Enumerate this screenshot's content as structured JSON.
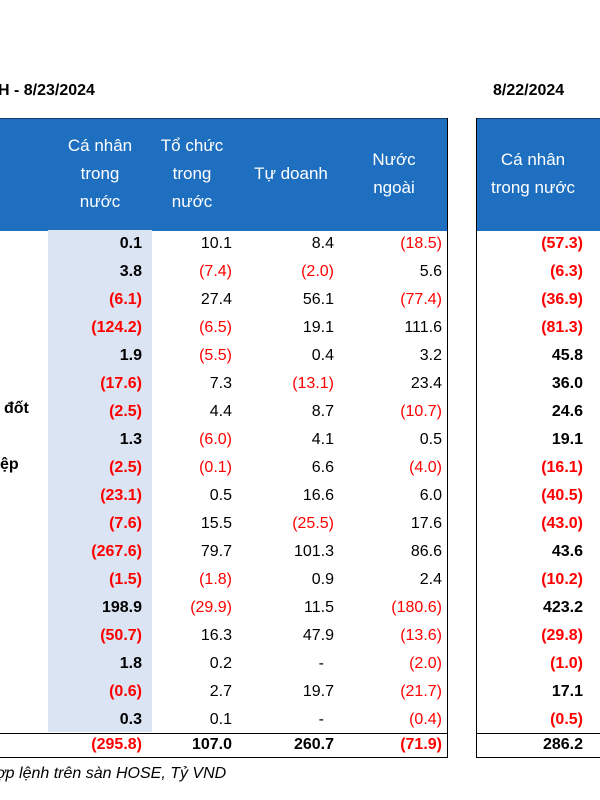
{
  "titles": {
    "left": "H - 8/23/2024",
    "right": "8/22/2024"
  },
  "headers": {
    "col1": [
      "Cá nhân",
      "trong",
      "nước"
    ],
    "col2": [
      "Tổ chức",
      "trong",
      "nước"
    ],
    "col3": [
      "Tự doanh"
    ],
    "col4": [
      "Nước",
      "ngoài"
    ],
    "col5": [
      "Cá nhân",
      "trong nước"
    ]
  },
  "row_labels": {
    "row7": "đốt",
    "row9": "ệp"
  },
  "rows": [
    [
      "0.1",
      "10.1",
      "8.4",
      "(18.5)",
      "(57.3)"
    ],
    [
      "3.8",
      "(7.4)",
      "(2.0)",
      "5.6",
      "(6.3)"
    ],
    [
      "(6.1)",
      "27.4",
      "56.1",
      "(77.4)",
      "(36.9)"
    ],
    [
      "(124.2)",
      "(6.5)",
      "19.1",
      "111.6",
      "(81.3)"
    ],
    [
      "1.9",
      "(5.5)",
      "0.4",
      "3.2",
      "45.8"
    ],
    [
      "(17.6)",
      "7.3",
      "(13.1)",
      "23.4",
      "36.0"
    ],
    [
      "(2.5)",
      "4.4",
      "8.7",
      "(10.7)",
      "24.6"
    ],
    [
      "1.3",
      "(6.0)",
      "4.1",
      "0.5",
      "19.1"
    ],
    [
      "(2.5)",
      "(0.1)",
      "6.6",
      "(4.0)",
      "(16.1)"
    ],
    [
      "(23.1)",
      "0.5",
      "16.6",
      "6.0",
      "(40.5)"
    ],
    [
      "(7.6)",
      "15.5",
      "(25.5)",
      "17.6",
      "(43.0)"
    ],
    [
      "(267.6)",
      "79.7",
      "101.3",
      "86.6",
      "43.6"
    ],
    [
      "(1.5)",
      "(1.8)",
      "0.9",
      "2.4",
      "(10.2)"
    ],
    [
      "198.9",
      "(29.9)",
      "11.5",
      "(180.6)",
      "423.2"
    ],
    [
      "(50.7)",
      "16.3",
      "47.9",
      "(13.6)",
      "(29.8)"
    ],
    [
      "1.8",
      "0.2",
      "-",
      "(2.0)",
      "(1.0)"
    ],
    [
      "(0.6)",
      "2.7",
      "19.7",
      "(21.7)",
      "17.1"
    ],
    [
      "0.3",
      "0.1",
      "-",
      "(0.4)",
      "(0.5)"
    ]
  ],
  "total": [
    "(295.8)",
    "107.0",
    "260.7",
    "(71.9)",
    "286.2"
  ],
  "footnote": "ợp lệnh trên sàn HOSE, Tỷ VND",
  "colors": {
    "header_bg": "#1e6fc0",
    "negative": "#ff0000",
    "shade": "#dbe4f2"
  }
}
